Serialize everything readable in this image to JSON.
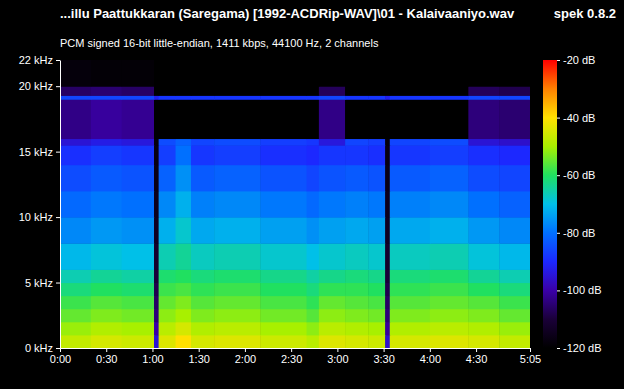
{
  "chart_data": {
    "type": "heatmap",
    "title": "...illu Paattukkaran (Saregama) [1992-ACDRip-WAV]\\01 - Kalaivaaniyo.wav",
    "subtitle": "PCM signed 16-bit little-endian, 1411 kbps, 44100 Hz, 2 channels",
    "annotations": [
      "spek 0.8.2"
    ],
    "xlim": [
      0,
      305
    ],
    "xticks": [
      {
        "value": 0,
        "label": "0:00"
      },
      {
        "value": 30,
        "label": "0:30"
      },
      {
        "value": 60,
        "label": "1:00"
      },
      {
        "value": 90,
        "label": "1:30"
      },
      {
        "value": 120,
        "label": "2:00"
      },
      {
        "value": 150,
        "label": "2:30"
      },
      {
        "value": 180,
        "label": "3:00"
      },
      {
        "value": 210,
        "label": "3:30"
      },
      {
        "value": 240,
        "label": "4:00"
      },
      {
        "value": 270,
        "label": "4:30"
      },
      {
        "value": 305,
        "label": "5:05"
      }
    ],
    "ylim": [
      0,
      22
    ],
    "yticks": [
      {
        "value": 0,
        "label": "0 kHz"
      },
      {
        "value": 5,
        "label": "5 kHz"
      },
      {
        "value": 10,
        "label": "10 kHz"
      },
      {
        "value": 15,
        "label": "15 kHz"
      },
      {
        "value": 20,
        "label": "20 kHz"
      },
      {
        "value": 22,
        "label": "22 kHz"
      }
    ],
    "grid": false,
    "time_bins": [
      0,
      20,
      40,
      61,
      64,
      75,
      85,
      100,
      130,
      160,
      168,
      185,
      200,
      211,
      214,
      240,
      265,
      285,
      305
    ],
    "freq_bins": [
      0,
      1,
      2,
      3,
      4,
      5,
      6,
      8,
      10,
      12,
      14,
      15.5,
      16,
      19,
      19.3,
      20,
      22
    ],
    "cells": [
      [
        -47,
        -45,
        -46,
        -95,
        -44,
        -40,
        -45,
        -44,
        -46,
        -48,
        -44,
        -45,
        -46,
        -96,
        -45,
        -44,
        -45,
        -47
      ],
      [
        -51,
        -49,
        -50,
        -100,
        -48,
        -45,
        -49,
        -48,
        -50,
        -52,
        -48,
        -49,
        -50,
        -101,
        -49,
        -48,
        -49,
        -51
      ],
      [
        -55,
        -53,
        -54,
        -104,
        -52,
        -50,
        -53,
        -52,
        -54,
        -56,
        -52,
        -53,
        -54,
        -104,
        -53,
        -52,
        -53,
        -55
      ],
      [
        -58,
        -56,
        -57,
        -106,
        -55,
        -53,
        -56,
        -55,
        -57,
        -59,
        -55,
        -56,
        -57,
        -106,
        -56,
        -55,
        -56,
        -58
      ],
      [
        -62,
        -60,
        -61,
        -108,
        -58,
        -57,
        -59,
        -58,
        -60,
        -62,
        -59,
        -59,
        -60,
        -108,
        -59,
        -58,
        -60,
        -62
      ],
      [
        -66,
        -64,
        -65,
        -110,
        -61,
        -60,
        -62,
        -61,
        -63,
        -65,
        -63,
        -62,
        -63,
        -110,
        -62,
        -61,
        -64,
        -66
      ],
      [
        -71,
        -69,
        -70,
        -112,
        -66,
        -64,
        -67,
        -66,
        -68,
        -70,
        -68,
        -67,
        -68,
        -112,
        -67,
        -66,
        -69,
        -71
      ],
      [
        -77,
        -75,
        -76,
        -114,
        -72,
        -68,
        -73,
        -72,
        -74,
        -76,
        -74,
        -73,
        -74,
        -114,
        -73,
        -72,
        -75,
        -77
      ],
      [
        -81,
        -79,
        -80,
        -115,
        -77,
        -72,
        -78,
        -77,
        -79,
        -81,
        -79,
        -78,
        -79,
        -115,
        -78,
        -77,
        -80,
        -82
      ],
      [
        -85,
        -83,
        -84,
        -116,
        -82,
        -76,
        -83,
        -82,
        -84,
        -86,
        -84,
        -83,
        -84,
        -116,
        -83,
        -82,
        -85,
        -86
      ],
      [
        -89,
        -87,
        -88,
        -117,
        -87,
        -80,
        -88,
        -87,
        -89,
        -90,
        -88,
        -88,
        -89,
        -117,
        -88,
        -87,
        -89,
        -90
      ],
      [
        -95,
        -93,
        -94,
        -118,
        -85,
        -82,
        -86,
        -85,
        -87,
        -88,
        -94,
        -86,
        -87,
        -118,
        -86,
        -85,
        -95,
        -96
      ],
      [
        -103,
        -101,
        -102,
        -120,
        -120,
        -120,
        -120,
        -120,
        -120,
        -120,
        -103,
        -120,
        -120,
        -120,
        -120,
        -120,
        -104,
        -105
      ],
      [
        -86,
        -86,
        -86,
        -92,
        -88,
        -88,
        -88,
        -88,
        -88,
        -88,
        -86,
        -88,
        -88,
        -92,
        -88,
        -88,
        -86,
        -86
      ],
      [
        -106,
        -105,
        -106,
        -120,
        -120,
        -120,
        -120,
        -120,
        -120,
        -120,
        -107,
        -120,
        -120,
        -120,
        -120,
        -120,
        -107,
        -108
      ],
      [
        -118,
        -119,
        -119,
        -120,
        -120,
        -120,
        -120,
        -120,
        -120,
        -120,
        -120,
        -120,
        -120,
        -120,
        -120,
        -120,
        -120,
        -120
      ]
    ],
    "colorbar_range": [
      -120,
      -20
    ],
    "colorbar_ticks": [
      {
        "value": -20,
        "label": "-20 dB"
      },
      {
        "value": -40,
        "label": "-40 dB"
      },
      {
        "value": -60,
        "label": "-60 dB"
      },
      {
        "value": -80,
        "label": "-80 dB"
      },
      {
        "value": -100,
        "label": "-100 dB"
      },
      {
        "value": -120,
        "label": "-120 dB"
      }
    ]
  }
}
